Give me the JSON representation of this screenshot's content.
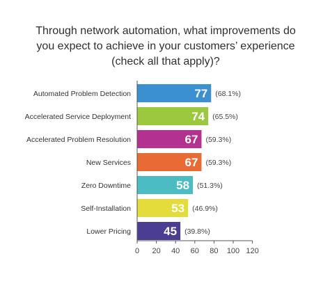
{
  "chart_data": {
    "type": "bar",
    "orientation": "horizontal",
    "title_lines": [
      "Through network automation, what improvements do",
      "you expect to achieve in your customers’ experience",
      "(check all that apply)?"
    ],
    "categories": [
      "Automated Problem Detection",
      "Accelerated Service Deployment",
      "Accelerated Problem Resolution",
      "New Services",
      "Zero Downtime",
      "Self-Installation",
      "Lower Pricing"
    ],
    "values": [
      77,
      74,
      67,
      67,
      58,
      53,
      45
    ],
    "value_labels": [
      "77",
      "74",
      "67",
      "67",
      "58",
      "53",
      "45"
    ],
    "percent_labels": [
      "(68.1%)",
      "(65.5%)",
      "(59.3%)",
      "(59.3%)",
      "(51.3%)",
      "(46.9%)",
      "(39.8%)"
    ],
    "colors": [
      "#3b90d1",
      "#9cc83f",
      "#b3318f",
      "#e86a34",
      "#4bbdc2",
      "#e3dc3b",
      "#4b3e92"
    ],
    "xlim": [
      0,
      120
    ],
    "xticks": [
      0,
      20,
      40,
      60,
      80,
      100,
      120
    ],
    "xtick_labels": [
      "0",
      "20",
      "40",
      "60",
      "80",
      "100",
      "120"
    ],
    "grid": false,
    "legend": "none"
  }
}
